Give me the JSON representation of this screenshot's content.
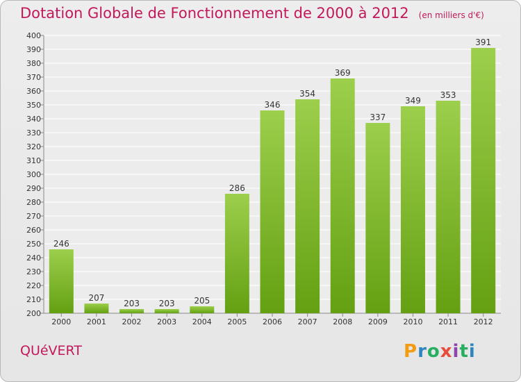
{
  "title": "Dotation Globale de Fonctionnement de 2000 à 2012",
  "unit_note": "(en milliers d'€)",
  "commune": "QUéVERT",
  "brand": {
    "letters": [
      "P",
      "r",
      "o",
      "x",
      "i",
      "t",
      "i"
    ],
    "colors": [
      "#f39c12",
      "#2e86c1",
      "#27ae60",
      "#e74c3c",
      "#8e44ad",
      "#27ae60",
      "#2e86c1"
    ]
  },
  "chart_data": {
    "type": "bar",
    "categories": [
      "2000",
      "2001",
      "2002",
      "2003",
      "2004",
      "2005",
      "2006",
      "2007",
      "2008",
      "2009",
      "2010",
      "2011",
      "2012"
    ],
    "values": [
      246,
      207,
      203,
      203,
      205,
      286,
      346,
      354,
      369,
      337,
      349,
      353,
      391
    ],
    "ylim": [
      200,
      400
    ],
    "ytick_step": 10,
    "grid": true,
    "bar_color": "#7cb82f",
    "title": "Dotation Globale de Fonctionnement de 2000 à 2012",
    "xlabel": "",
    "ylabel": ""
  }
}
